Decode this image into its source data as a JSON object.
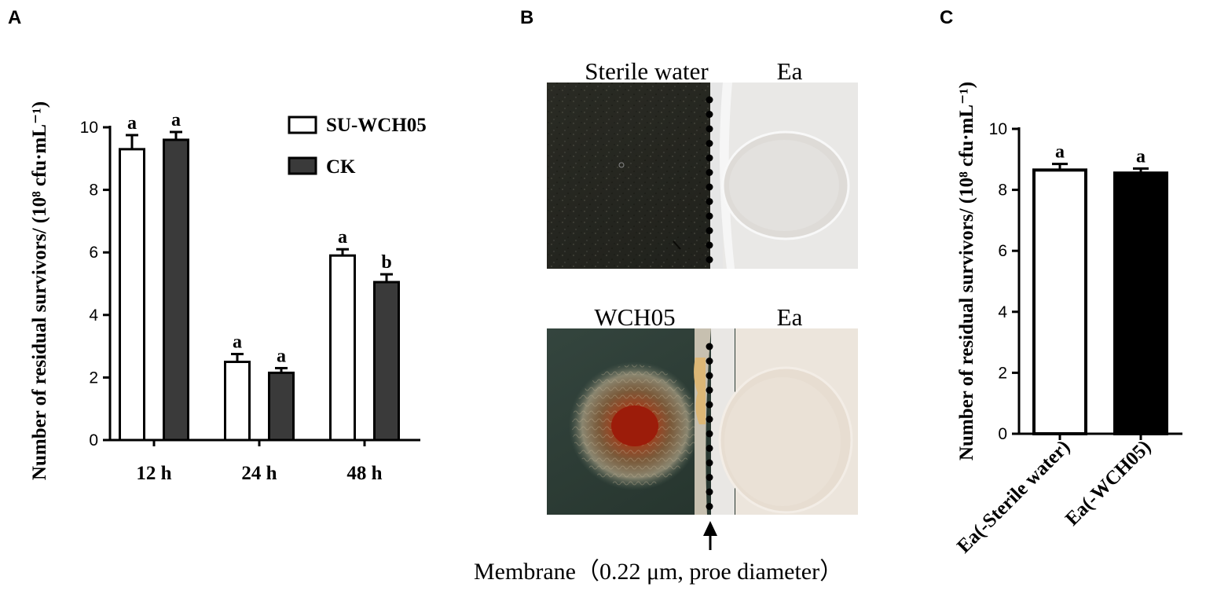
{
  "panels": {
    "a": "A",
    "b": "B",
    "c": "C"
  },
  "chart_data": [
    {
      "type": "bar",
      "panel": "A",
      "categories": [
        "12 h",
        "24 h",
        "48 h"
      ],
      "series": [
        {
          "name": "SU-WCH05",
          "values": [
            9.3,
            2.5,
            5.9
          ],
          "errors": [
            0.45,
            0.25,
            0.2
          ],
          "sig": [
            "a",
            "a",
            "a"
          ],
          "color": "#ffffff"
        },
        {
          "name": "CK",
          "values": [
            9.6,
            2.15,
            5.05
          ],
          "errors": [
            0.25,
            0.15,
            0.25
          ],
          "sig": [
            "a",
            "a",
            "b"
          ],
          "color": "#3a3a3a"
        }
      ],
      "ylabel": "Number of residual survivors/ (10⁸ cfu·mL⁻¹)",
      "ylim": [
        0,
        10
      ],
      "yticks": [
        0,
        2,
        4,
        6,
        8,
        10
      ],
      "legend": "top-right"
    },
    {
      "type": "bar",
      "panel": "C",
      "categories": [
        "Ea(-Sterile water)",
        "Ea(-WCH05)"
      ],
      "series": [
        {
          "values": [
            8.65,
            8.55
          ],
          "errors": [
            0.2,
            0.15
          ],
          "sig": [
            "a",
            "a"
          ],
          "colors": [
            "#ffffff",
            "#000000"
          ]
        }
      ],
      "ylabel": "Number of residual survivors/ (10⁸ cfu·mL⁻¹)",
      "ylim": [
        0,
        10
      ],
      "yticks": [
        0,
        2,
        4,
        6,
        8,
        10
      ]
    }
  ],
  "photo_panel": {
    "top_left_label": "Sterile water",
    "top_right_label": "Ea",
    "bottom_left_label": "WCH05",
    "bottom_right_label": "Ea",
    "membrane_caption": "Membrane（0.22 μm, proe diameter）"
  }
}
